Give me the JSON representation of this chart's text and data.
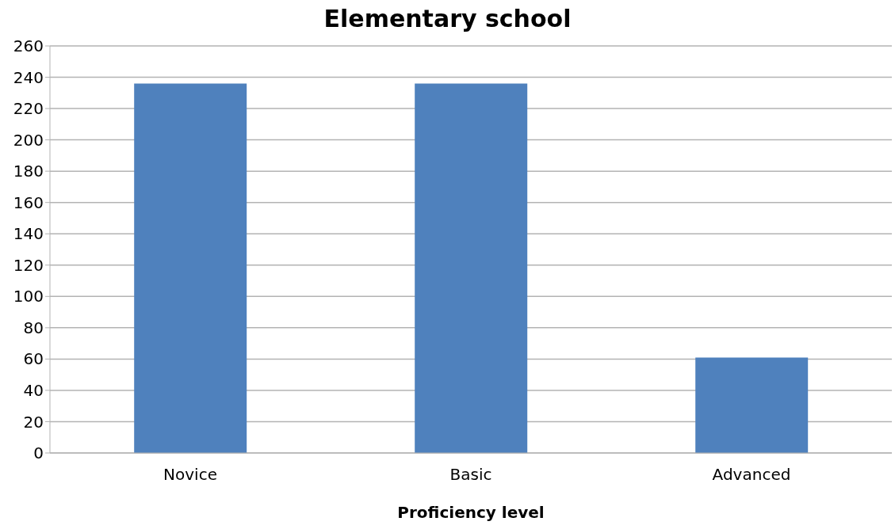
{
  "chart_data": {
    "type": "bar",
    "title": "Elementary school",
    "xlabel": "Proficiency level",
    "categories": [
      "Novice",
      "Basic",
      "Advanced"
    ],
    "values": [
      236,
      236,
      61
    ],
    "color": "#4f81bd",
    "ylim": [
      0,
      260
    ],
    "yticks": [
      0,
      20,
      40,
      60,
      80,
      100,
      120,
      140,
      160,
      180,
      200,
      220,
      240,
      260
    ],
    "grid": "y"
  }
}
